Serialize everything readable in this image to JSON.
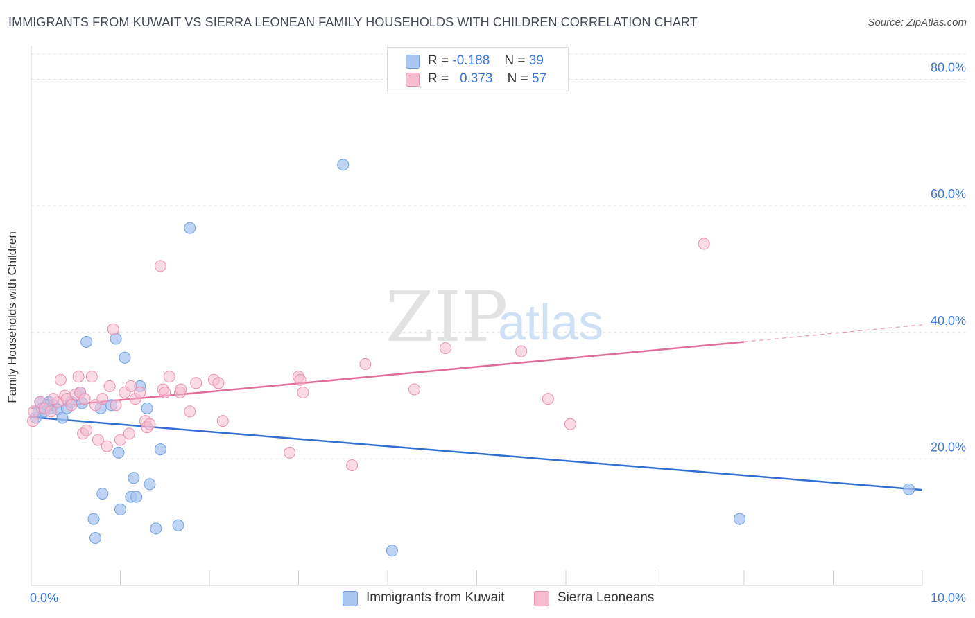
{
  "header": {
    "title": "IMMIGRANTS FROM KUWAIT VS SIERRA LEONEAN FAMILY HOUSEHOLDS WITH CHILDREN CORRELATION CHART",
    "source": "Source: ZipAtlas.com"
  },
  "watermark": {
    "zip": "ZIP",
    "atlas": "atlas"
  },
  "legend": {
    "series1": {
      "r_label": "R =",
      "r_value": "-0.188",
      "n_label": "N =",
      "n_value": "39"
    },
    "series2": {
      "r_label": "R =",
      "r_value": "0.373",
      "n_label": "N =",
      "n_value": "57"
    }
  },
  "bottom_legend": {
    "series1": "Immigrants from Kuwait",
    "series2": "Sierra Leoneans"
  },
  "colors": {
    "series1_fill": "#a9c6f0",
    "series1_stroke": "#6e9fe0",
    "series1_line": "#2f6fd1",
    "series2_fill": "#f6bcd0",
    "series2_stroke": "#e98fb0",
    "series2_line": "#e06c9a",
    "axis_text": "#3b78d8",
    "grid": "#e3e3e3"
  },
  "chart_data": {
    "type": "scatter",
    "title": "IMMIGRANTS FROM KUWAIT VS SIERRA LEONEAN FAMILY HOUSEHOLDS WITH CHILDREN CORRELATION CHART",
    "xlabel": "",
    "ylabel": "Family Households with Children",
    "xlim": [
      0,
      10
    ],
    "ylim": [
      0,
      84
    ],
    "x_tick_labels": [
      "0.0%",
      "10.0%"
    ],
    "y_ticks": [
      20,
      40,
      60,
      80
    ],
    "y_tick_labels": [
      "20.0%",
      "40.0%",
      "60.0%",
      "80.0%"
    ],
    "grid": true,
    "legend_position": "top-center",
    "series": [
      {
        "name": "Immigrants from Kuwait",
        "trend": {
          "x": [
            0,
            10
          ],
          "y": [
            26.6,
            15.1
          ]
        },
        "points": [
          [
            0.05,
            26.5
          ],
          [
            0.08,
            27.5
          ],
          [
            0.1,
            29
          ],
          [
            0.12,
            28
          ],
          [
            0.15,
            27.5
          ],
          [
            0.2,
            29
          ],
          [
            0.22,
            28
          ],
          [
            0.25,
            28.5
          ],
          [
            0.3,
            27.8
          ],
          [
            0.35,
            26.5
          ],
          [
            0.4,
            28
          ],
          [
            0.45,
            29
          ],
          [
            0.55,
            30.5
          ],
          [
            0.57,
            28.8
          ],
          [
            0.62,
            38.5
          ],
          [
            0.7,
            10.5
          ],
          [
            0.72,
            7.5
          ],
          [
            0.8,
            14.5
          ],
          [
            0.78,
            28
          ],
          [
            0.9,
            28.5
          ],
          [
            0.95,
            39
          ],
          [
            0.98,
            21
          ],
          [
            1.0,
            12
          ],
          [
            1.05,
            36
          ],
          [
            1.12,
            14
          ],
          [
            1.15,
            17
          ],
          [
            1.18,
            14
          ],
          [
            1.22,
            31.5
          ],
          [
            1.3,
            28
          ],
          [
            1.33,
            16
          ],
          [
            1.4,
            9
          ],
          [
            1.45,
            21.5
          ],
          [
            1.65,
            9.5
          ],
          [
            1.78,
            56.5
          ],
          [
            3.5,
            66.5
          ],
          [
            4.05,
            5.5
          ],
          [
            7.95,
            10.5
          ],
          [
            9.85,
            15.2
          ],
          [
            0.18,
            28.5
          ]
        ]
      },
      {
        "name": "Sierra Leoneans",
        "trend": {
          "x": [
            0,
            8.0
          ],
          "y": [
            28.0,
            38.5
          ]
        },
        "trend_ext": {
          "x": [
            8.0,
            10.0
          ],
          "y": [
            38.5,
            41.2
          ]
        },
        "points": [
          [
            0.02,
            26
          ],
          [
            0.03,
            27.5
          ],
          [
            0.1,
            29
          ],
          [
            0.15,
            28
          ],
          [
            0.22,
            27.5
          ],
          [
            0.3,
            29
          ],
          [
            0.33,
            32.5
          ],
          [
            0.38,
            30
          ],
          [
            0.4,
            29.5
          ],
          [
            0.45,
            28.5
          ],
          [
            0.5,
            30.2
          ],
          [
            0.53,
            33
          ],
          [
            0.55,
            30.5
          ],
          [
            0.58,
            24
          ],
          [
            0.62,
            24.5
          ],
          [
            0.68,
            33
          ],
          [
            0.72,
            28.5
          ],
          [
            0.75,
            23
          ],
          [
            0.8,
            29.5
          ],
          [
            0.85,
            22
          ],
          [
            0.88,
            31.5
          ],
          [
            0.92,
            40.5
          ],
          [
            0.95,
            28.5
          ],
          [
            1.0,
            23
          ],
          [
            1.05,
            30.5
          ],
          [
            1.1,
            24
          ],
          [
            1.12,
            31.5
          ],
          [
            1.17,
            29.5
          ],
          [
            1.22,
            30.5
          ],
          [
            1.28,
            26
          ],
          [
            1.3,
            25
          ],
          [
            1.33,
            25.5
          ],
          [
            1.45,
            50.5
          ],
          [
            1.48,
            31
          ],
          [
            1.5,
            30.5
          ],
          [
            1.55,
            33
          ],
          [
            1.67,
            30.5
          ],
          [
            1.68,
            31
          ],
          [
            1.78,
            27.5
          ],
          [
            1.85,
            32
          ],
          [
            2.05,
            32.5
          ],
          [
            2.1,
            32
          ],
          [
            2.15,
            26
          ],
          [
            2.9,
            21
          ],
          [
            3.0,
            33
          ],
          [
            3.02,
            32.5
          ],
          [
            3.05,
            30.5
          ],
          [
            3.6,
            19
          ],
          [
            3.75,
            35
          ],
          [
            4.3,
            31
          ],
          [
            4.65,
            37.5
          ],
          [
            5.5,
            37
          ],
          [
            5.8,
            29.5
          ],
          [
            6.05,
            25.5
          ],
          [
            7.55,
            54
          ],
          [
            0.25,
            29.5
          ],
          [
            0.6,
            29.5
          ]
        ]
      }
    ]
  }
}
